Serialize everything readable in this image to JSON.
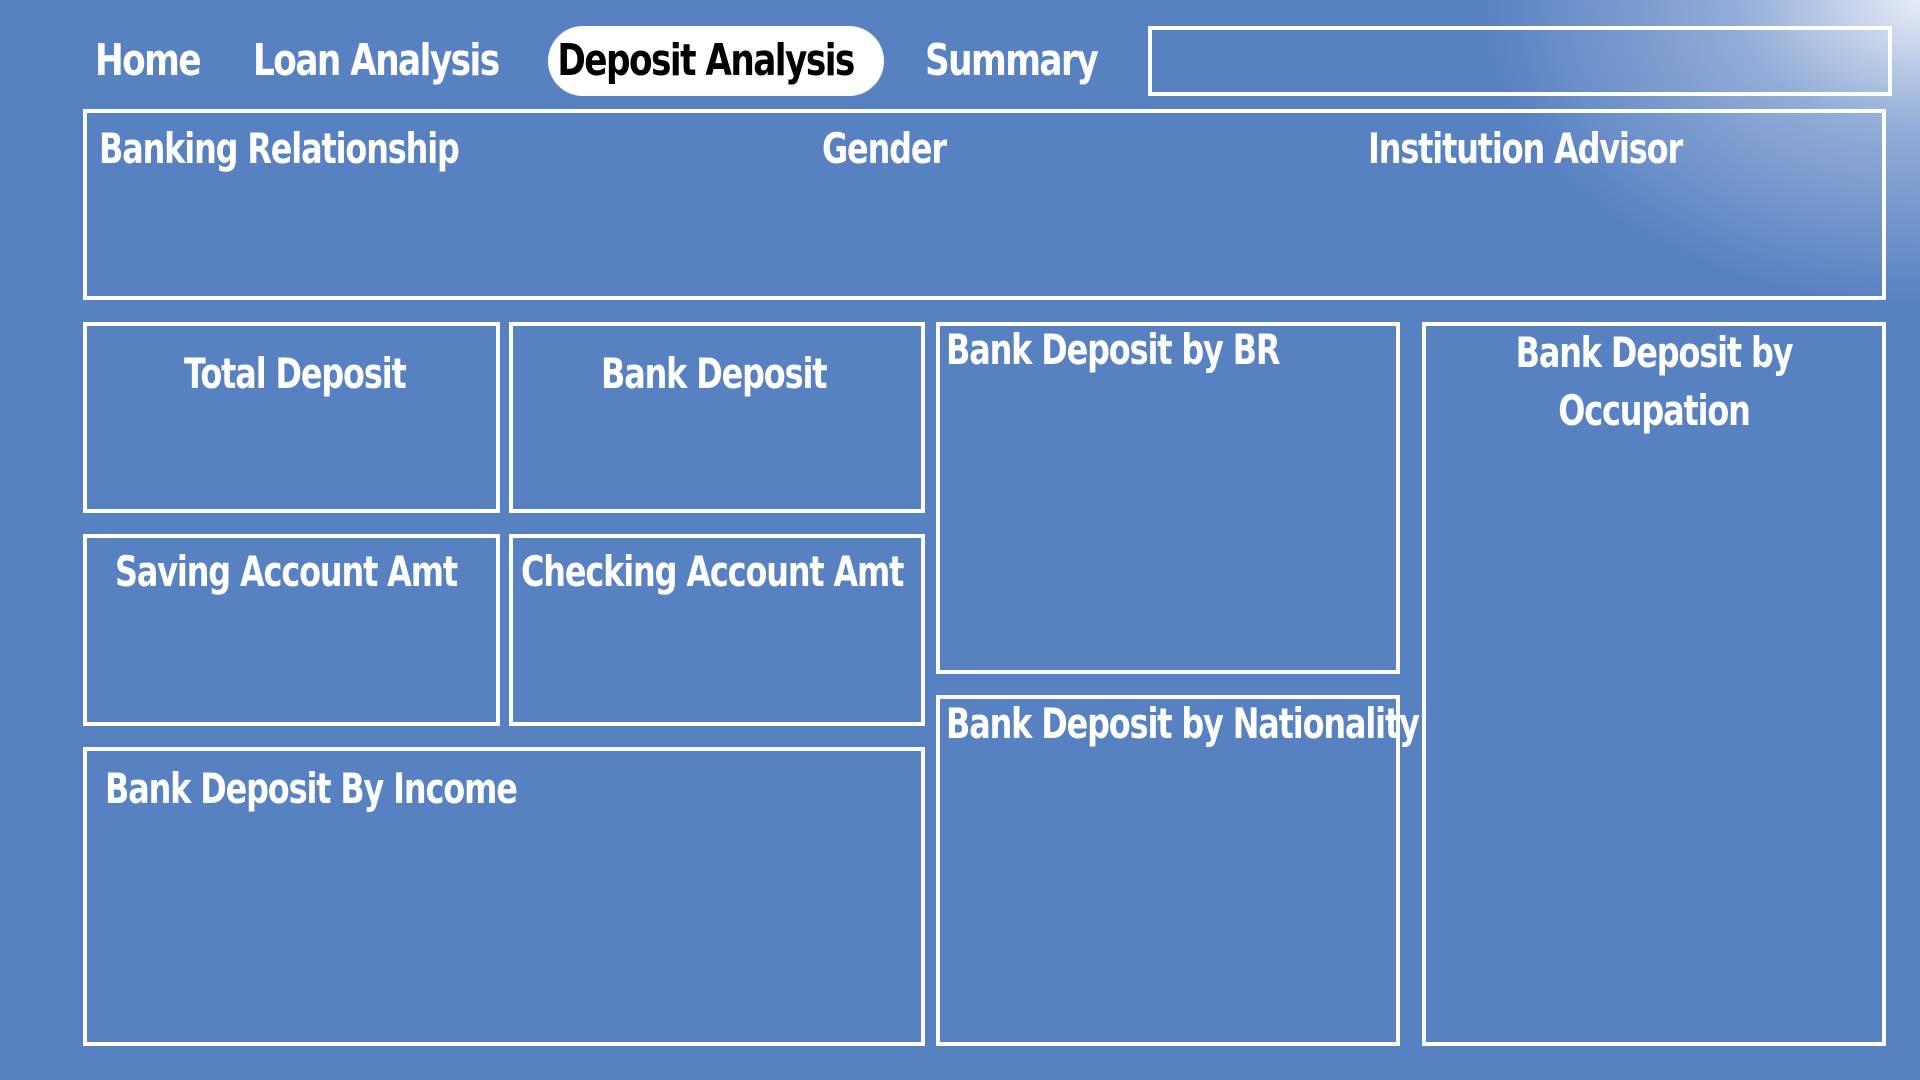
{
  "nav": {
    "tabs": [
      {
        "label": "Home"
      },
      {
        "label": "Loan Analysis"
      },
      {
        "label": "Deposit Analysis",
        "active": true
      },
      {
        "label": "Summary"
      }
    ]
  },
  "filters": {
    "banking_relationship": "Banking Relationship",
    "gender": "Gender",
    "institution_advisor": "Institution Advisor"
  },
  "cards": {
    "total_deposit": "Total Deposit",
    "bank_deposit": "Bank Deposit",
    "saving_account_amt": "Saving Account Amt",
    "checking_account_amt": "Checking Account Amt"
  },
  "visuals": {
    "by_income": "Bank Deposit By Income",
    "by_br": "Bank Deposit by BR",
    "by_nationality": "Bank Deposit by Nationality",
    "by_occupation": "Bank Deposit by Occupation"
  },
  "colors": {
    "background": "#5881c2",
    "border": "#ffffff",
    "active_tab_bg": "#ffffff",
    "active_tab_text": "#000000"
  }
}
